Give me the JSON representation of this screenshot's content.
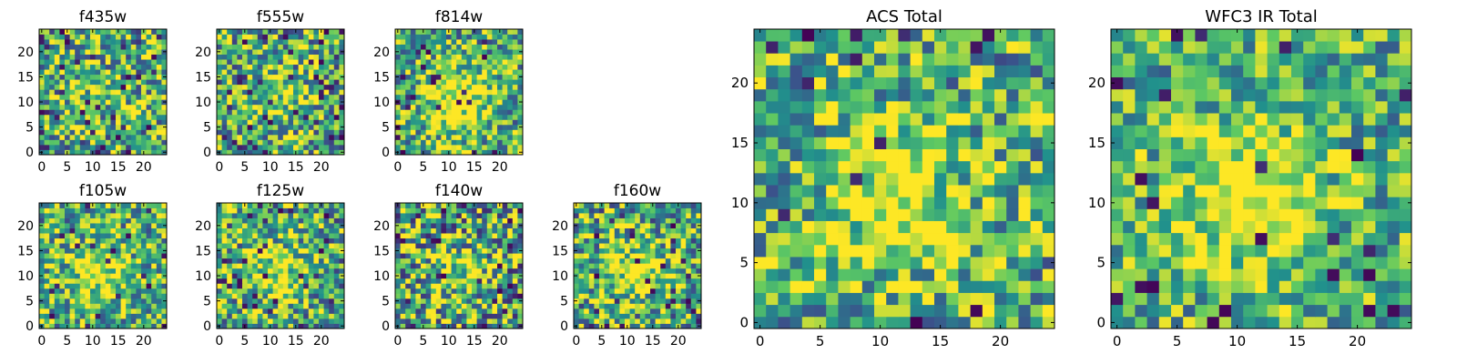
{
  "figure": {
    "description_free": true
  },
  "colormap": {
    "name": "viridis",
    "stops": [
      "#440154",
      "#3b528b",
      "#21918c",
      "#5ec962",
      "#fde725"
    ]
  },
  "chart_data": [
    {
      "type": "heatmap",
      "title": "f435w",
      "grid_size": 25,
      "xlim": [
        0,
        24
      ],
      "ylim": [
        0,
        24
      ],
      "xticks": [
        0,
        5,
        10,
        15,
        20
      ],
      "yticks": [
        0,
        5,
        10,
        15,
        20
      ],
      "pattern": {
        "noise": 0.45,
        "peak": 0.1,
        "holes": 0.05,
        "seed": 11
      },
      "values_note": "Pixel intensities read as mostly green-yellow noise with scattered dark cells."
    },
    {
      "type": "heatmap",
      "title": "f555w",
      "grid_size": 25,
      "xlim": [
        0,
        24
      ],
      "ylim": [
        0,
        24
      ],
      "xticks": [
        0,
        5,
        10,
        15,
        20
      ],
      "yticks": [
        0,
        5,
        10,
        15,
        20
      ],
      "pattern": {
        "noise": 0.45,
        "peak": 0.25,
        "holes": 0.06,
        "seed": 23
      },
      "values_note": "Noisy field, faint bright band near x≈10."
    },
    {
      "type": "heatmap",
      "title": "f814w",
      "grid_size": 25,
      "xlim": [
        0,
        24
      ],
      "ylim": [
        0,
        24
      ],
      "xticks": [
        0,
        5,
        10,
        15,
        20
      ],
      "yticks": [
        0,
        5,
        10,
        15,
        20
      ],
      "pattern": {
        "noise": 0.4,
        "peak": 0.45,
        "holes": 0.04,
        "seed": 37
      },
      "values_note": "Bright yellow source centred around (10,10)."
    },
    {
      "type": "heatmap",
      "title": "f105w",
      "grid_size": 25,
      "xlim": [
        0,
        24
      ],
      "ylim": [
        0,
        24
      ],
      "xticks": [
        0,
        5,
        10,
        15,
        20
      ],
      "yticks": [
        0,
        5,
        10,
        15,
        20
      ],
      "pattern": {
        "noise": 0.4,
        "peak": 0.35,
        "holes": 0.04,
        "seed": 41
      },
      "values_note": "Smooth clumpy field with brighter centre."
    },
    {
      "type": "heatmap",
      "title": "f125w",
      "grid_size": 25,
      "xlim": [
        0,
        24
      ],
      "ylim": [
        0,
        24
      ],
      "xticks": [
        0,
        5,
        10,
        15,
        20
      ],
      "yticks": [
        0,
        5,
        10,
        15,
        20
      ],
      "pattern": {
        "noise": 0.45,
        "peak": 0.35,
        "holes": 0.06,
        "seed": 53
      },
      "values_note": "Clumpy field, bright spot near (15,10), dark cells lower right."
    },
    {
      "type": "heatmap",
      "title": "f140w",
      "grid_size": 25,
      "xlim": [
        0,
        24
      ],
      "ylim": [
        0,
        24
      ],
      "xticks": [
        0,
        5,
        10,
        15,
        20
      ],
      "yticks": [
        0,
        5,
        10,
        15,
        20
      ],
      "pattern": {
        "noise": 0.5,
        "peak": 0.25,
        "holes": 0.05,
        "seed": 67
      },
      "values_note": "High-contrast clumpy field."
    },
    {
      "type": "heatmap",
      "title": "f160w",
      "grid_size": 25,
      "xlim": [
        0,
        24
      ],
      "ylim": [
        0,
        24
      ],
      "xticks": [
        0,
        5,
        10,
        15,
        20
      ],
      "yticks": [
        0,
        5,
        10,
        15,
        20
      ],
      "pattern": {
        "noise": 0.45,
        "peak": 0.35,
        "holes": 0.05,
        "seed": 79
      },
      "values_note": "Clumpy field, brighter centre, dark cells at right edge."
    },
    {
      "type": "heatmap",
      "title": "ACS Total",
      "grid_size": 25,
      "xlim": [
        0,
        24
      ],
      "ylim": [
        0,
        24
      ],
      "xticks": [
        0,
        5,
        10,
        15,
        20
      ],
      "yticks": [
        0,
        5,
        10,
        15,
        20
      ],
      "pattern": {
        "noise": 0.4,
        "peak": 0.4,
        "holes": 0.03,
        "seed": 97
      },
      "values_note": "Bright vertical structure around x≈10–12, dark isolated cells."
    },
    {
      "type": "heatmap",
      "title": "WFC3 IR Total",
      "grid_size": 25,
      "xlim": [
        0,
        24
      ],
      "ylim": [
        0,
        24
      ],
      "xticks": [
        0,
        5,
        10,
        15,
        20
      ],
      "yticks": [
        0,
        5,
        10,
        15,
        20
      ],
      "pattern": {
        "noise": 0.35,
        "peak": 0.5,
        "holes": 0.04,
        "seed": 113
      },
      "values_note": "Bright yellow blob centred near (12,12), dark cluster near (19,12)."
    }
  ]
}
